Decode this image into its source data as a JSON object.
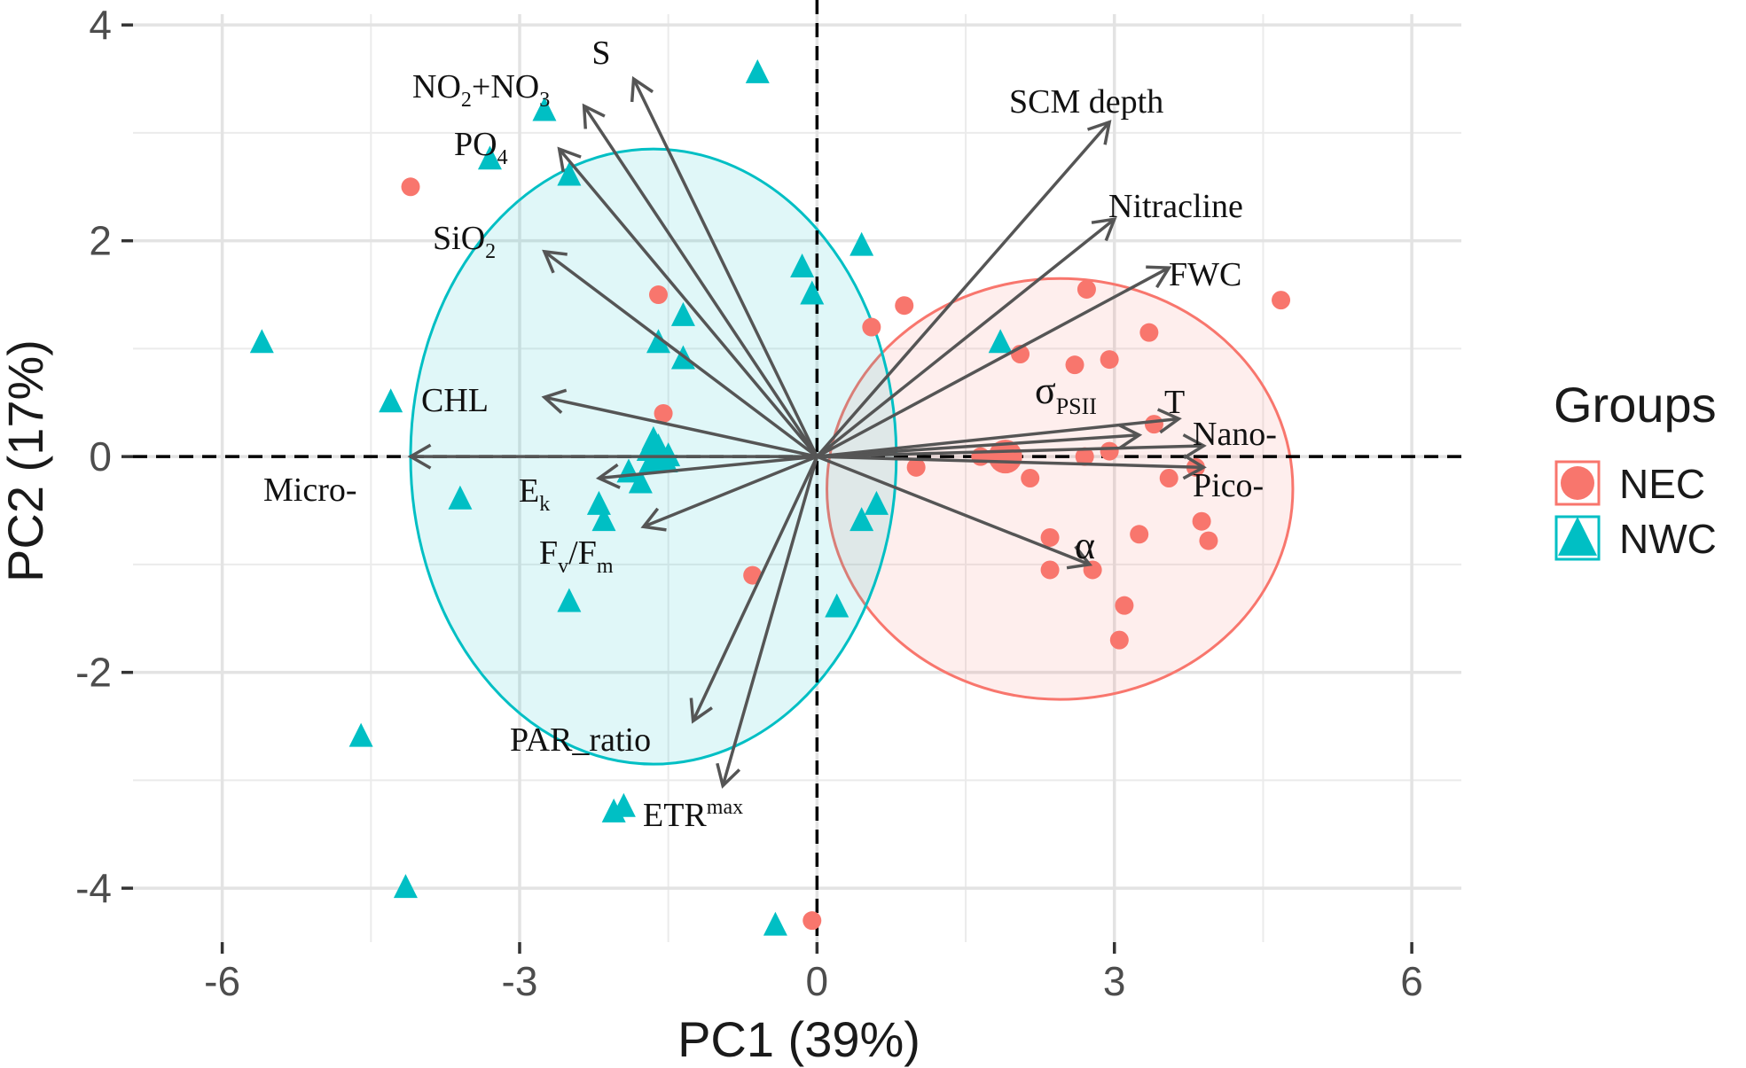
{
  "chart_data": {
    "type": "scatter",
    "subtype": "pca-biplot",
    "xlabel": "PC1 (39%)",
    "ylabel": "PC2 (17%)",
    "xlim": [
      -6.9,
      6.5
    ],
    "ylim": [
      -4.5,
      4.1
    ],
    "x_ticks": [
      -6,
      -3,
      0,
      3,
      6
    ],
    "y_ticks": [
      -4,
      -2,
      0,
      2,
      4
    ],
    "x_tick_labels": [
      "-6",
      "-3",
      "0",
      "3",
      "6"
    ],
    "y_tick_labels": [
      "-4",
      "-2",
      "0",
      "2",
      "4"
    ],
    "grid": true,
    "reference_lines": {
      "x": 0,
      "y": 0
    },
    "legend": {
      "title": "Groups",
      "position": "right",
      "entries": [
        {
          "name": "NEC",
          "shape": "circle",
          "color": "#F8766D"
        },
        {
          "name": "NWC",
          "shape": "triangle",
          "color": "#00BFC4"
        }
      ]
    },
    "series": [
      {
        "name": "NEC",
        "shape": "circle",
        "color": "#F8766D",
        "points": [
          [
            -4.1,
            2.5
          ],
          [
            -1.6,
            1.5
          ],
          [
            -1.55,
            0.4
          ],
          [
            -0.65,
            -1.1
          ],
          [
            -0.05,
            -4.3
          ],
          [
            0.55,
            1.2
          ],
          [
            0.88,
            1.4
          ],
          [
            1.0,
            -0.1
          ],
          [
            2.05,
            0.95
          ],
          [
            2.15,
            -0.2
          ],
          [
            2.6,
            0.85
          ],
          [
            2.72,
            1.55
          ],
          [
            2.95,
            0.9
          ],
          [
            2.7,
            0.0
          ],
          [
            3.35,
            1.15
          ],
          [
            2.35,
            -0.75
          ],
          [
            2.35,
            -1.05
          ],
          [
            2.78,
            -1.05
          ],
          [
            3.25,
            -0.72
          ],
          [
            3.1,
            -1.38
          ],
          [
            3.05,
            -1.7
          ],
          [
            3.82,
            -0.1
          ],
          [
            3.88,
            -0.6
          ],
          [
            3.95,
            -0.78
          ],
          [
            4.68,
            1.45
          ],
          [
            1.85,
            0.05
          ],
          [
            1.65,
            0.0
          ],
          [
            3.4,
            0.3
          ],
          [
            2.95,
            0.05
          ],
          [
            3.55,
            -0.2
          ]
        ],
        "centroid": [
          1.9,
          0.0
        ]
      },
      {
        "name": "NWC",
        "shape": "triangle",
        "color": "#00BFC4",
        "points": [
          [
            -5.6,
            1.05
          ],
          [
            -4.3,
            0.5
          ],
          [
            -3.6,
            -0.4
          ],
          [
            -3.3,
            2.75
          ],
          [
            -2.75,
            3.2
          ],
          [
            -2.5,
            2.6
          ],
          [
            -2.5,
            -1.35
          ],
          [
            -2.2,
            -0.45
          ],
          [
            -2.15,
            -0.6
          ],
          [
            -2.05,
            -3.3
          ],
          [
            -1.95,
            -3.25
          ],
          [
            -1.9,
            -0.15
          ],
          [
            -1.78,
            -0.25
          ],
          [
            -1.7,
            0.05
          ],
          [
            -1.65,
            0.15
          ],
          [
            -1.6,
            1.05
          ],
          [
            -1.5,
            0.0
          ],
          [
            -1.35,
            1.3
          ],
          [
            -1.35,
            0.9
          ],
          [
            -0.6,
            3.55
          ],
          [
            -0.42,
            -4.35
          ],
          [
            -0.15,
            1.75
          ],
          [
            -0.05,
            1.5
          ],
          [
            0.2,
            -1.4
          ],
          [
            0.45,
            1.95
          ],
          [
            0.45,
            -0.6
          ],
          [
            0.6,
            -0.45
          ],
          [
            1.85,
            1.05
          ],
          [
            -4.15,
            -4.0
          ],
          [
            -4.6,
            -2.6
          ],
          [
            -1.55,
            -0.05
          ]
        ],
        "centroid": [
          -1.6,
          0.0
        ]
      }
    ],
    "ellipses": [
      {
        "group": "NEC",
        "cx": 2.45,
        "cy": -0.3,
        "rx": 2.35,
        "ry": 1.95,
        "color": "#F8766D",
        "fill": "#F8766D"
      },
      {
        "group": "NWC",
        "cx": -1.65,
        "cy": 0.0,
        "rx": 2.45,
        "ry": 2.85,
        "color": "#00BFC4",
        "fill": "#00BFC4"
      }
    ],
    "loadings": [
      {
        "label": "S",
        "x": -1.85,
        "y": 3.5
      },
      {
        "label": "NO2+NO3",
        "x": -2.35,
        "y": 3.25
      },
      {
        "label": "PO4",
        "x": -2.6,
        "y": 2.85
      },
      {
        "label": "SiO2",
        "x": -2.75,
        "y": 1.9
      },
      {
        "label": "CHL",
        "x": -2.75,
        "y": 0.55
      },
      {
        "label": "Micro-",
        "x": -4.1,
        "y": 0.0
      },
      {
        "label": "Ek",
        "x": -2.2,
        "y": -0.2
      },
      {
        "label": "Fv/Fm",
        "x": -1.75,
        "y": -0.65
      },
      {
        "label": "PAR_ratio",
        "x": -1.25,
        "y": -2.45
      },
      {
        "label": "ETRmax",
        "x": -0.95,
        "y": -3.05
      },
      {
        "label": "SCM depth",
        "x": 2.95,
        "y": 3.1
      },
      {
        "label": "Nitracline",
        "x": 3.0,
        "y": 2.2
      },
      {
        "label": "FWC",
        "x": 3.55,
        "y": 1.75
      },
      {
        "label": "σPSII",
        "x": 3.25,
        "y": 0.2
      },
      {
        "label": "T",
        "x": 3.65,
        "y": 0.35
      },
      {
        "label": "Nano-",
        "x": 3.9,
        "y": 0.1
      },
      {
        "label": "Pico-",
        "x": 3.9,
        "y": -0.1
      },
      {
        "label": "α",
        "x": 2.75,
        "y": -1.0
      }
    ],
    "loading_labels": {
      "S": {
        "main": "S"
      },
      "NO2+NO3": {
        "parts": [
          "NO",
          "2",
          "+NO",
          "3"
        ]
      },
      "PO4": {
        "parts": [
          "PO",
          "4"
        ]
      },
      "SiO2": {
        "parts": [
          "SiO",
          "2"
        ]
      },
      "CHL": {
        "main": "CHL"
      },
      "Micro-": {
        "main": "Micro-"
      },
      "Ek": {
        "parts": [
          "E",
          "k"
        ]
      },
      "Fv/Fm": {
        "parts": [
          "F",
          "v",
          "/F",
          "m"
        ]
      },
      "PAR_ratio": {
        "main": "PAR_ratio"
      },
      "ETRmax": {
        "main": "ETR",
        "sup": "max"
      },
      "SCM depth": {
        "main": "SCM depth"
      },
      "Nitracline": {
        "main": "Nitracline"
      },
      "FWC": {
        "main": "FWC"
      },
      "σPSII": {
        "main": "σ",
        "sub": "PSII"
      },
      "T": {
        "main": "T"
      },
      "Nano-": {
        "main": "Nano-"
      },
      "Pico-": {
        "main": "Pico-"
      },
      "α": {
        "main": "α"
      }
    }
  }
}
